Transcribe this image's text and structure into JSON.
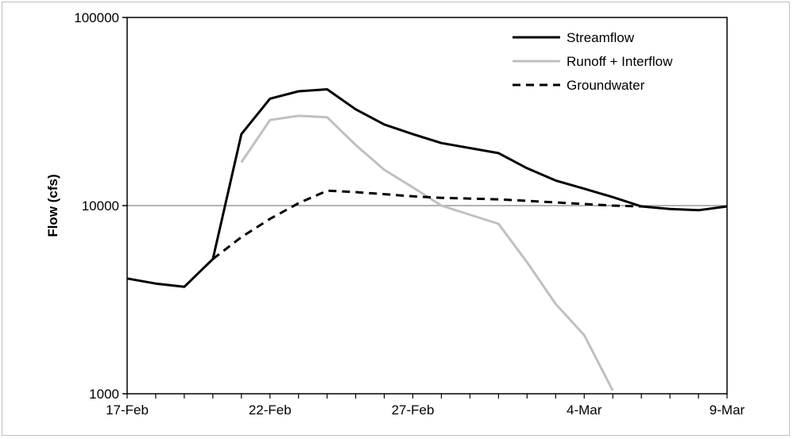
{
  "chart_data": {
    "type": "line",
    "title": "",
    "xlabel": "",
    "ylabel": "Flow (cfs)",
    "y_scale": "log",
    "ylim": [
      1000,
      100000
    ],
    "xlim": [
      "17-Feb",
      "9-Mar"
    ],
    "x_ticks": [
      "17-Feb",
      "22-Feb",
      "27-Feb",
      "4-Mar",
      "9-Mar"
    ],
    "y_ticks": [
      "1000",
      "10000",
      "100000"
    ],
    "grid": "horizontal major",
    "legend_position": "top-right",
    "series": [
      {
        "name": "Streamflow",
        "color": "#000000",
        "style": "solid",
        "x": [
          "17-Feb",
          "18-Feb",
          "19-Feb",
          "20-Feb",
          "21-Feb",
          "22-Feb",
          "23-Feb",
          "24-Feb",
          "25-Feb",
          "26-Feb",
          "27-Feb",
          "28-Feb",
          "1-Mar",
          "2-Mar",
          "3-Mar",
          "4-Mar",
          "5-Mar",
          "6-Mar",
          "7-Mar",
          "8-Mar",
          "9-Mar"
        ],
        "values": [
          4100,
          3850,
          3700,
          5200,
          24000,
          37000,
          40500,
          41500,
          32500,
          27000,
          24000,
          21500,
          19000,
          15800,
          13600,
          12300,
          11100,
          9900,
          9600,
          9450,
          9900
        ]
      },
      {
        "name": "Runoff + Interflow",
        "color": "#c0c0c0",
        "style": "solid",
        "x": [
          "21-Feb",
          "22-Feb",
          "23-Feb",
          "24-Feb",
          "25-Feb",
          "26-Feb",
          "27-Feb",
          "28-Feb",
          "1-Mar",
          "2-Mar",
          "3-Mar",
          "4-Mar",
          "5-Mar"
        ],
        "values": [
          17000,
          28500,
          30000,
          29500,
          21000,
          15500,
          12500,
          10000,
          8000,
          5000,
          3000,
          2050,
          1040
        ]
      },
      {
        "name": "Groundwater",
        "color": "#000000",
        "style": "dashed",
        "x": [
          "20-Feb",
          "21-Feb",
          "22-Feb",
          "23-Feb",
          "24-Feb",
          "25-Feb",
          "26-Feb",
          "27-Feb",
          "28-Feb",
          "1-Mar",
          "2-Mar",
          "3-Mar",
          "4-Mar",
          "5-Mar",
          "6-Mar"
        ],
        "values": [
          5200,
          6800,
          8500,
          10300,
          12000,
          11800,
          11500,
          11200,
          11000,
          10800,
          10600,
          10400,
          10200,
          10000,
          9900
        ]
      }
    ]
  }
}
